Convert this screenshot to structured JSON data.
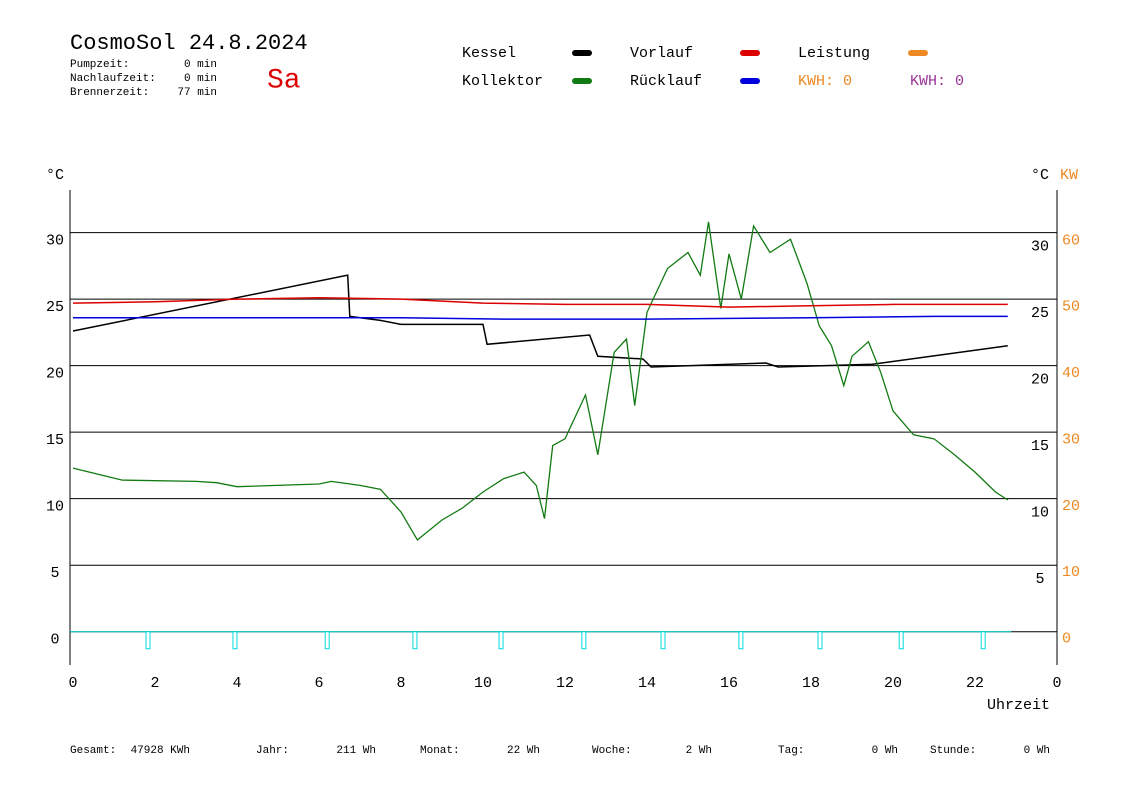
{
  "header": {
    "title": "CosmoSol 24.8.2024",
    "day": "Sa",
    "stats": [
      [
        "Pumpzeit:",
        "0 min"
      ],
      [
        "Nachlaufzeit:",
        "0 min"
      ],
      [
        "Brennerzeit:",
        "77 min"
      ]
    ],
    "kwh_labels": [
      {
        "text": "KWH: 0",
        "color": "#ee8822"
      },
      {
        "text": "KWH: 0",
        "color": "#993399"
      }
    ]
  },
  "chart_data": {
    "type": "line",
    "x_label": "Uhrzeit",
    "y_label": "°C",
    "y2_label": "°C",
    "y2_unit_label": "KW",
    "xlim": [
      0,
      24
    ],
    "xticks": [
      0,
      2,
      4,
      6,
      8,
      10,
      12,
      14,
      16,
      18,
      20,
      22,
      {
        "value": 24,
        "label": "0"
      }
    ],
    "ylim": [
      -2.5,
      33.2
    ],
    "yticks": [
      0,
      5,
      10,
      15,
      20,
      25,
      30
    ],
    "y2_celsius_ticks": [
      5,
      10,
      15,
      20,
      25,
      30
    ],
    "y2lim": [
      -4,
      67.6
    ],
    "y2ticks": [
      0,
      10,
      20,
      30,
      40,
      50,
      60
    ],
    "grid": true,
    "series": [
      {
        "name": "Kessel",
        "color": "#000000",
        "x": [
          0,
          6.7,
          6.75,
          7.5,
          8,
          10,
          10.1,
          12.6,
          12.8,
          13.9,
          14.1,
          16.9,
          17.2,
          19.5,
          22.8
        ],
        "values": [
          22.6,
          26.8,
          23.7,
          23.4,
          23.1,
          23.1,
          21.6,
          22.3,
          20.7,
          20.5,
          19.9,
          20.2,
          19.9,
          20.1,
          21.5
        ]
      },
      {
        "name": "Kollektor",
        "color": "#127a12",
        "x": [
          0,
          1.2,
          3,
          3.5,
          4,
          6,
          6.3,
          7,
          7.5,
          8,
          8.4,
          9,
          9.5,
          10,
          10.5,
          11,
          11.3,
          11.5,
          11.7,
          12,
          12.5,
          12.8,
          13.2,
          13.5,
          13.7,
          14,
          14.5,
          15,
          15.3,
          15.5,
          15.8,
          16,
          16.3,
          16.6,
          17,
          17.5,
          17.9,
          18.2,
          18.5,
          18.8,
          19,
          19.4,
          19.7,
          20,
          20.5,
          21,
          21.5,
          22,
          22.5,
          22.8
        ],
        "values": [
          12.3,
          11.4,
          11.3,
          11.2,
          10.9,
          11.1,
          11.3,
          11.0,
          10.7,
          9.0,
          6.9,
          8.4,
          9.3,
          10.5,
          11.5,
          12.0,
          11.0,
          8.5,
          14.0,
          14.5,
          17.8,
          13.3,
          21.0,
          22.0,
          17.0,
          24.0,
          27.3,
          28.5,
          26.8,
          30.8,
          24.3,
          28.4,
          25.0,
          30.5,
          28.5,
          29.5,
          26.2,
          23.0,
          21.5,
          18.5,
          20.7,
          21.8,
          19.5,
          16.6,
          14.8,
          14.5,
          13.3,
          12.0,
          10.5,
          9.9
        ]
      },
      {
        "name": "Vorlauf",
        "color": "#dd0000",
        "x": [
          0,
          2,
          4,
          6,
          8,
          10,
          12,
          14,
          16,
          18,
          20,
          22.8
        ],
        "values": [
          24.7,
          24.8,
          25.0,
          25.1,
          25.0,
          24.7,
          24.6,
          24.6,
          24.4,
          24.5,
          24.6,
          24.6
        ]
      },
      {
        "name": "Rücklauf",
        "color": "#0000dd",
        "x": [
          0,
          4,
          8,
          10.5,
          14,
          18,
          21,
          22.8
        ],
        "values": [
          23.6,
          23.6,
          23.6,
          23.5,
          23.5,
          23.6,
          23.7,
          23.7
        ]
      },
      {
        "name": "Leistung",
        "color": "#ee8822",
        "x": [],
        "values": []
      }
    ],
    "pulse_color": "#00dddd",
    "pulse_x": [
      1.83,
      3.95,
      6.2,
      8.34,
      10.44,
      12.46,
      14.39,
      16.29,
      18.22,
      20.2,
      22.2
    ]
  },
  "footer": [
    [
      "Gesamt:",
      "47928 KWh"
    ],
    [
      "Jahr:",
      "211 Wh"
    ],
    [
      "Monat:",
      "22 Wh"
    ],
    [
      "Woche:",
      "2 Wh"
    ],
    [
      "Tag:",
      "0 Wh"
    ],
    [
      "Stunde:",
      "0 Wh"
    ]
  ]
}
